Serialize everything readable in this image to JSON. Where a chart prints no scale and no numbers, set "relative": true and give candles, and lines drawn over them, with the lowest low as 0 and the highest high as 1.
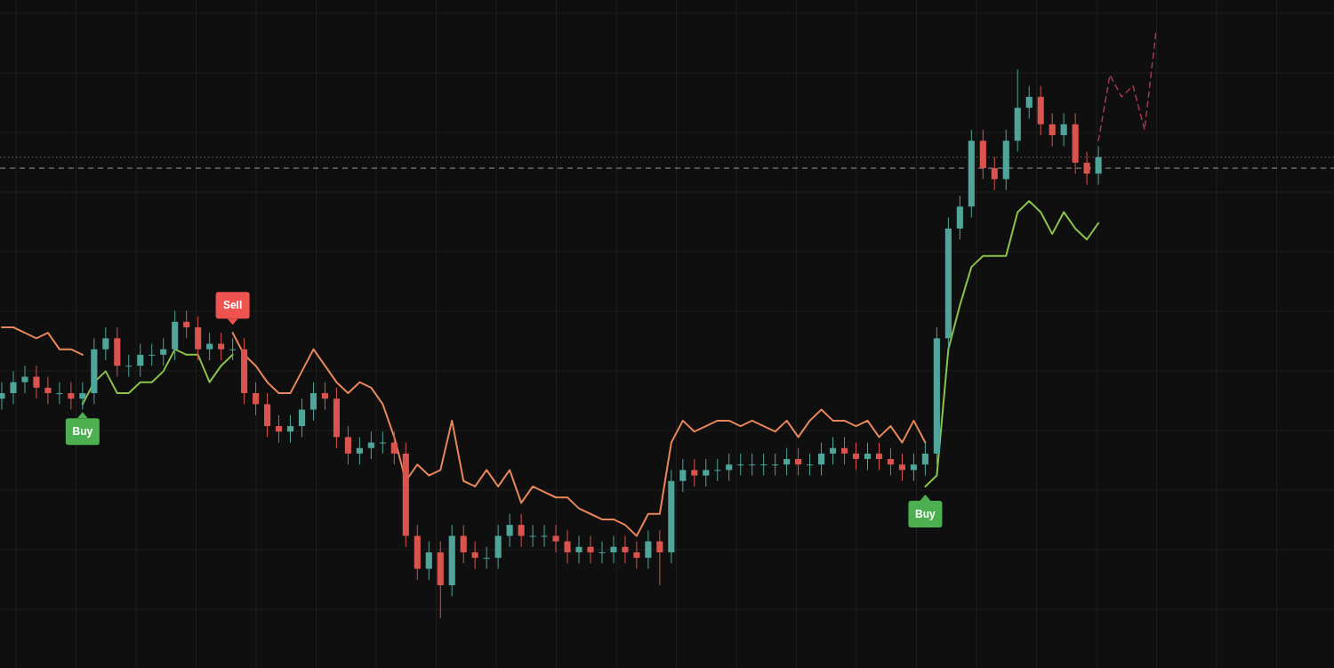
{
  "chart_data": {
    "type": "candlestick",
    "relative": true,
    "grid": true,
    "categories": [
      null,
      null,
      null,
      null,
      null,
      null,
      null,
      null,
      null,
      null,
      null,
      null,
      null,
      null,
      null,
      null,
      null,
      null,
      null,
      null,
      null,
      null,
      null,
      null,
      null,
      null,
      null,
      null,
      null,
      null,
      null,
      null,
      null,
      null,
      null,
      null,
      null,
      null,
      null,
      null,
      null,
      null,
      null,
      null,
      null,
      null,
      null,
      null,
      null,
      null,
      null,
      null,
      null,
      null,
      null,
      null,
      null,
      null,
      null,
      null,
      null,
      null,
      null,
      null,
      null,
      null,
      null,
      null,
      null,
      null,
      null,
      null,
      null,
      null,
      null,
      null,
      null,
      null,
      null,
      null,
      null,
      null,
      null,
      null,
      null,
      null,
      null,
      null,
      null,
      null,
      null,
      null,
      null,
      null,
      null,
      null,
      null,
      null,
      null,
      null,
      null
    ],
    "ohlc": [
      [
        0.4,
        0.43,
        0.38,
        0.41
      ],
      [
        0.41,
        0.45,
        0.39,
        0.43
      ],
      [
        0.43,
        0.46,
        0.41,
        0.44
      ],
      [
        0.44,
        0.46,
        0.4,
        0.42
      ],
      [
        0.42,
        0.44,
        0.39,
        0.41
      ],
      [
        0.41,
        0.43,
        0.39,
        0.41
      ],
      [
        0.41,
        0.43,
        0.38,
        0.4
      ],
      [
        0.4,
        0.43,
        0.38,
        0.41
      ],
      [
        0.41,
        0.51,
        0.39,
        0.49
      ],
      [
        0.49,
        0.53,
        0.47,
        0.51
      ],
      [
        0.51,
        0.53,
        0.44,
        0.46
      ],
      [
        0.46,
        0.48,
        0.44,
        0.46
      ],
      [
        0.46,
        0.5,
        0.44,
        0.48
      ],
      [
        0.48,
        0.5,
        0.46,
        0.48
      ],
      [
        0.48,
        0.51,
        0.46,
        0.49
      ],
      [
        0.49,
        0.56,
        0.47,
        0.54
      ],
      [
        0.54,
        0.56,
        0.51,
        0.53
      ],
      [
        0.53,
        0.55,
        0.47,
        0.49
      ],
      [
        0.49,
        0.52,
        0.47,
        0.5
      ],
      [
        0.5,
        0.52,
        0.47,
        0.49
      ],
      [
        0.49,
        0.51,
        0.47,
        0.49
      ],
      [
        0.49,
        0.51,
        0.39,
        0.41
      ],
      [
        0.41,
        0.43,
        0.37,
        0.39
      ],
      [
        0.39,
        0.41,
        0.33,
        0.35
      ],
      [
        0.35,
        0.37,
        0.32,
        0.34
      ],
      [
        0.34,
        0.37,
        0.32,
        0.35
      ],
      [
        0.35,
        0.4,
        0.33,
        0.38
      ],
      [
        0.38,
        0.43,
        0.36,
        0.41
      ],
      [
        0.41,
        0.43,
        0.38,
        0.4
      ],
      [
        0.4,
        0.42,
        0.31,
        0.33
      ],
      [
        0.33,
        0.35,
        0.28,
        0.3
      ],
      [
        0.3,
        0.33,
        0.28,
        0.31
      ],
      [
        0.31,
        0.34,
        0.29,
        0.32
      ],
      [
        0.32,
        0.34,
        0.3,
        0.32
      ],
      [
        0.32,
        0.34,
        0.28,
        0.3
      ],
      [
        0.3,
        0.32,
        0.13,
        0.15
      ],
      [
        0.15,
        0.17,
        0.07,
        0.09
      ],
      [
        0.09,
        0.14,
        0.07,
        0.12
      ],
      [
        0.12,
        0.14,
        0,
        0.06
      ],
      [
        0.06,
        0.17,
        0.04,
        0.15
      ],
      [
        0.15,
        0.17,
        0.1,
        0.12
      ],
      [
        0.12,
        0.14,
        0.09,
        0.11
      ],
      [
        0.11,
        0.13,
        0.09,
        0.11
      ],
      [
        0.11,
        0.17,
        0.09,
        0.15
      ],
      [
        0.15,
        0.19,
        0.13,
        0.17
      ],
      [
        0.17,
        0.19,
        0.13,
        0.15
      ],
      [
        0.15,
        0.17,
        0.13,
        0.15
      ],
      [
        0.15,
        0.17,
        0.13,
        0.15
      ],
      [
        0.15,
        0.17,
        0.12,
        0.14
      ],
      [
        0.14,
        0.16,
        0.1,
        0.12
      ],
      [
        0.12,
        0.15,
        0.1,
        0.13
      ],
      [
        0.13,
        0.15,
        0.1,
        0.12
      ],
      [
        0.12,
        0.14,
        0.1,
        0.12
      ],
      [
        0.12,
        0.15,
        0.1,
        0.13
      ],
      [
        0.13,
        0.15,
        0.1,
        0.12
      ],
      [
        0.12,
        0.14,
        0.09,
        0.11
      ],
      [
        0.11,
        0.16,
        0.09,
        0.14
      ],
      [
        0.14,
        0.16,
        0.06,
        0.12
      ],
      [
        0.12,
        0.27,
        0.1,
        0.25
      ],
      [
        0.25,
        0.29,
        0.23,
        0.27
      ],
      [
        0.27,
        0.29,
        0.24,
        0.26
      ],
      [
        0.26,
        0.29,
        0.24,
        0.27
      ],
      [
        0.27,
        0.29,
        0.25,
        0.27
      ],
      [
        0.27,
        0.3,
        0.25,
        0.28
      ],
      [
        0.28,
        0.3,
        0.26,
        0.28
      ],
      [
        0.28,
        0.3,
        0.26,
        0.28
      ],
      [
        0.28,
        0.3,
        0.26,
        0.28
      ],
      [
        0.28,
        0.3,
        0.26,
        0.28
      ],
      [
        0.28,
        0.31,
        0.26,
        0.29
      ],
      [
        0.29,
        0.31,
        0.26,
        0.28
      ],
      [
        0.28,
        0.3,
        0.26,
        0.28
      ],
      [
        0.28,
        0.32,
        0.26,
        0.3
      ],
      [
        0.3,
        0.33,
        0.28,
        0.31
      ],
      [
        0.31,
        0.33,
        0.28,
        0.3
      ],
      [
        0.3,
        0.32,
        0.27,
        0.29
      ],
      [
        0.29,
        0.32,
        0.27,
        0.3
      ],
      [
        0.3,
        0.32,
        0.27,
        0.29
      ],
      [
        0.29,
        0.31,
        0.26,
        0.28
      ],
      [
        0.28,
        0.3,
        0.25,
        0.27
      ],
      [
        0.27,
        0.3,
        0.25,
        0.28
      ],
      [
        0.28,
        0.32,
        0.26,
        0.3
      ],
      [
        0.3,
        0.53,
        0.28,
        0.51
      ],
      [
        0.51,
        0.73,
        0.49,
        0.71
      ],
      [
        0.71,
        0.77,
        0.69,
        0.75
      ],
      [
        0.75,
        0.89,
        0.73,
        0.87
      ],
      [
        0.87,
        0.89,
        0.8,
        0.82
      ],
      [
        0.82,
        0.84,
        0.78,
        0.8
      ],
      [
        0.8,
        0.89,
        0.78,
        0.87
      ],
      [
        0.87,
        1,
        0.85,
        0.93
      ],
      [
        0.93,
        0.97,
        0.91,
        0.95
      ],
      [
        0.95,
        0.97,
        0.88,
        0.9
      ],
      [
        0.9,
        0.92,
        0.86,
        0.88
      ],
      [
        0.88,
        0.92,
        0.86,
        0.9
      ],
      [
        0.9,
        0.92,
        0.81,
        0.83
      ],
      [
        0.83,
        0.85,
        0.79,
        0.81
      ],
      [
        0.81,
        0.86,
        0.79,
        0.84
      ],
      null,
      null,
      null,
      null,
      null
    ],
    "series": [
      {
        "type": "line",
        "color": "#e8875a",
        "values": [
          0.53,
          0.53,
          0.52,
          0.51,
          0.52,
          0.49,
          0.49,
          0.48,
          null,
          null,
          null,
          null,
          null,
          null,
          null,
          null,
          null,
          null,
          null,
          null,
          0.52,
          0.48,
          0.46,
          0.43,
          0.41,
          0.41,
          0.45,
          0.49,
          0.46,
          0.43,
          0.41,
          0.43,
          0.42,
          0.39,
          0.33,
          0.25,
          0.28,
          0.26,
          0.27,
          0.36,
          0.25,
          0.24,
          0.27,
          0.24,
          0.27,
          0.21,
          0.24,
          0.23,
          0.22,
          0.22,
          0.2,
          0.19,
          0.18,
          0.18,
          0.17,
          0.15,
          0.19,
          0.19,
          0.32,
          0.36,
          0.34,
          0.35,
          0.36,
          0.36,
          0.35,
          0.36,
          0.35,
          0.34,
          0.36,
          0.33,
          0.36,
          0.38,
          0.36,
          0.36,
          0.35,
          0.36,
          0.33,
          0.35,
          0.32,
          0.36,
          0.32,
          null,
          null,
          null,
          null,
          null,
          null,
          null,
          null,
          null,
          null,
          null,
          null,
          null,
          null,
          null,
          null,
          null,
          null,
          null,
          null
        ]
      },
      {
        "type": "line",
        "color": "#8bc34a",
        "values": [
          null,
          null,
          null,
          null,
          null,
          null,
          null,
          0.39,
          0.43,
          0.45,
          0.41,
          0.41,
          0.43,
          0.43,
          0.45,
          0.49,
          0.48,
          0.48,
          0.43,
          0.46,
          0.48,
          null,
          null,
          null,
          null,
          null,
          null,
          null,
          null,
          null,
          null,
          null,
          null,
          null,
          null,
          null,
          null,
          null,
          null,
          null,
          null,
          null,
          null,
          null,
          null,
          null,
          null,
          null,
          null,
          null,
          null,
          null,
          null,
          null,
          null,
          null,
          null,
          null,
          null,
          null,
          null,
          null,
          null,
          null,
          null,
          null,
          null,
          null,
          null,
          null,
          null,
          null,
          null,
          null,
          null,
          null,
          null,
          null,
          null,
          null,
          0.24,
          0.26,
          0.49,
          0.57,
          0.64,
          0.66,
          0.66,
          0.66,
          0.74,
          0.76,
          0.74,
          0.7,
          0.74,
          0.71,
          0.69,
          0.72,
          null,
          null,
          null,
          null,
          null
        ]
      },
      {
        "type": "line",
        "color": "#a03a4e",
        "line_style": "dashed",
        "values": [
          null,
          null,
          null,
          null,
          null,
          null,
          null,
          null,
          null,
          null,
          null,
          null,
          null,
          null,
          null,
          null,
          null,
          null,
          null,
          null,
          null,
          null,
          null,
          null,
          null,
          null,
          null,
          null,
          null,
          null,
          null,
          null,
          null,
          null,
          null,
          null,
          null,
          null,
          null,
          null,
          null,
          null,
          null,
          null,
          null,
          null,
          null,
          null,
          null,
          null,
          null,
          null,
          null,
          null,
          null,
          null,
          null,
          null,
          null,
          null,
          null,
          null,
          null,
          null,
          null,
          null,
          null,
          null,
          null,
          null,
          null,
          null,
          null,
          null,
          null,
          null,
          null,
          null,
          null,
          null,
          null,
          null,
          null,
          null,
          null,
          null,
          null,
          null,
          null,
          null,
          null,
          null,
          null,
          null,
          null,
          0.87,
          0.99,
          0.95,
          0.97,
          0.89,
          1.07
        ]
      }
    ],
    "ref_lines": [
      {
        "axis": "y",
        "value": 0.82,
        "color": "#9a9a9a",
        "line_style": "dashed"
      },
      {
        "axis": "y",
        "value": 0.84,
        "color": "#6a6a6a",
        "line_style": "dotted"
      }
    ],
    "annotations": [
      {
        "text": "Buy",
        "y": 0.39
      },
      {
        "text": "Sell",
        "y": 0.52
      },
      {
        "text": "Buy",
        "y": 0.24
      }
    ]
  }
}
